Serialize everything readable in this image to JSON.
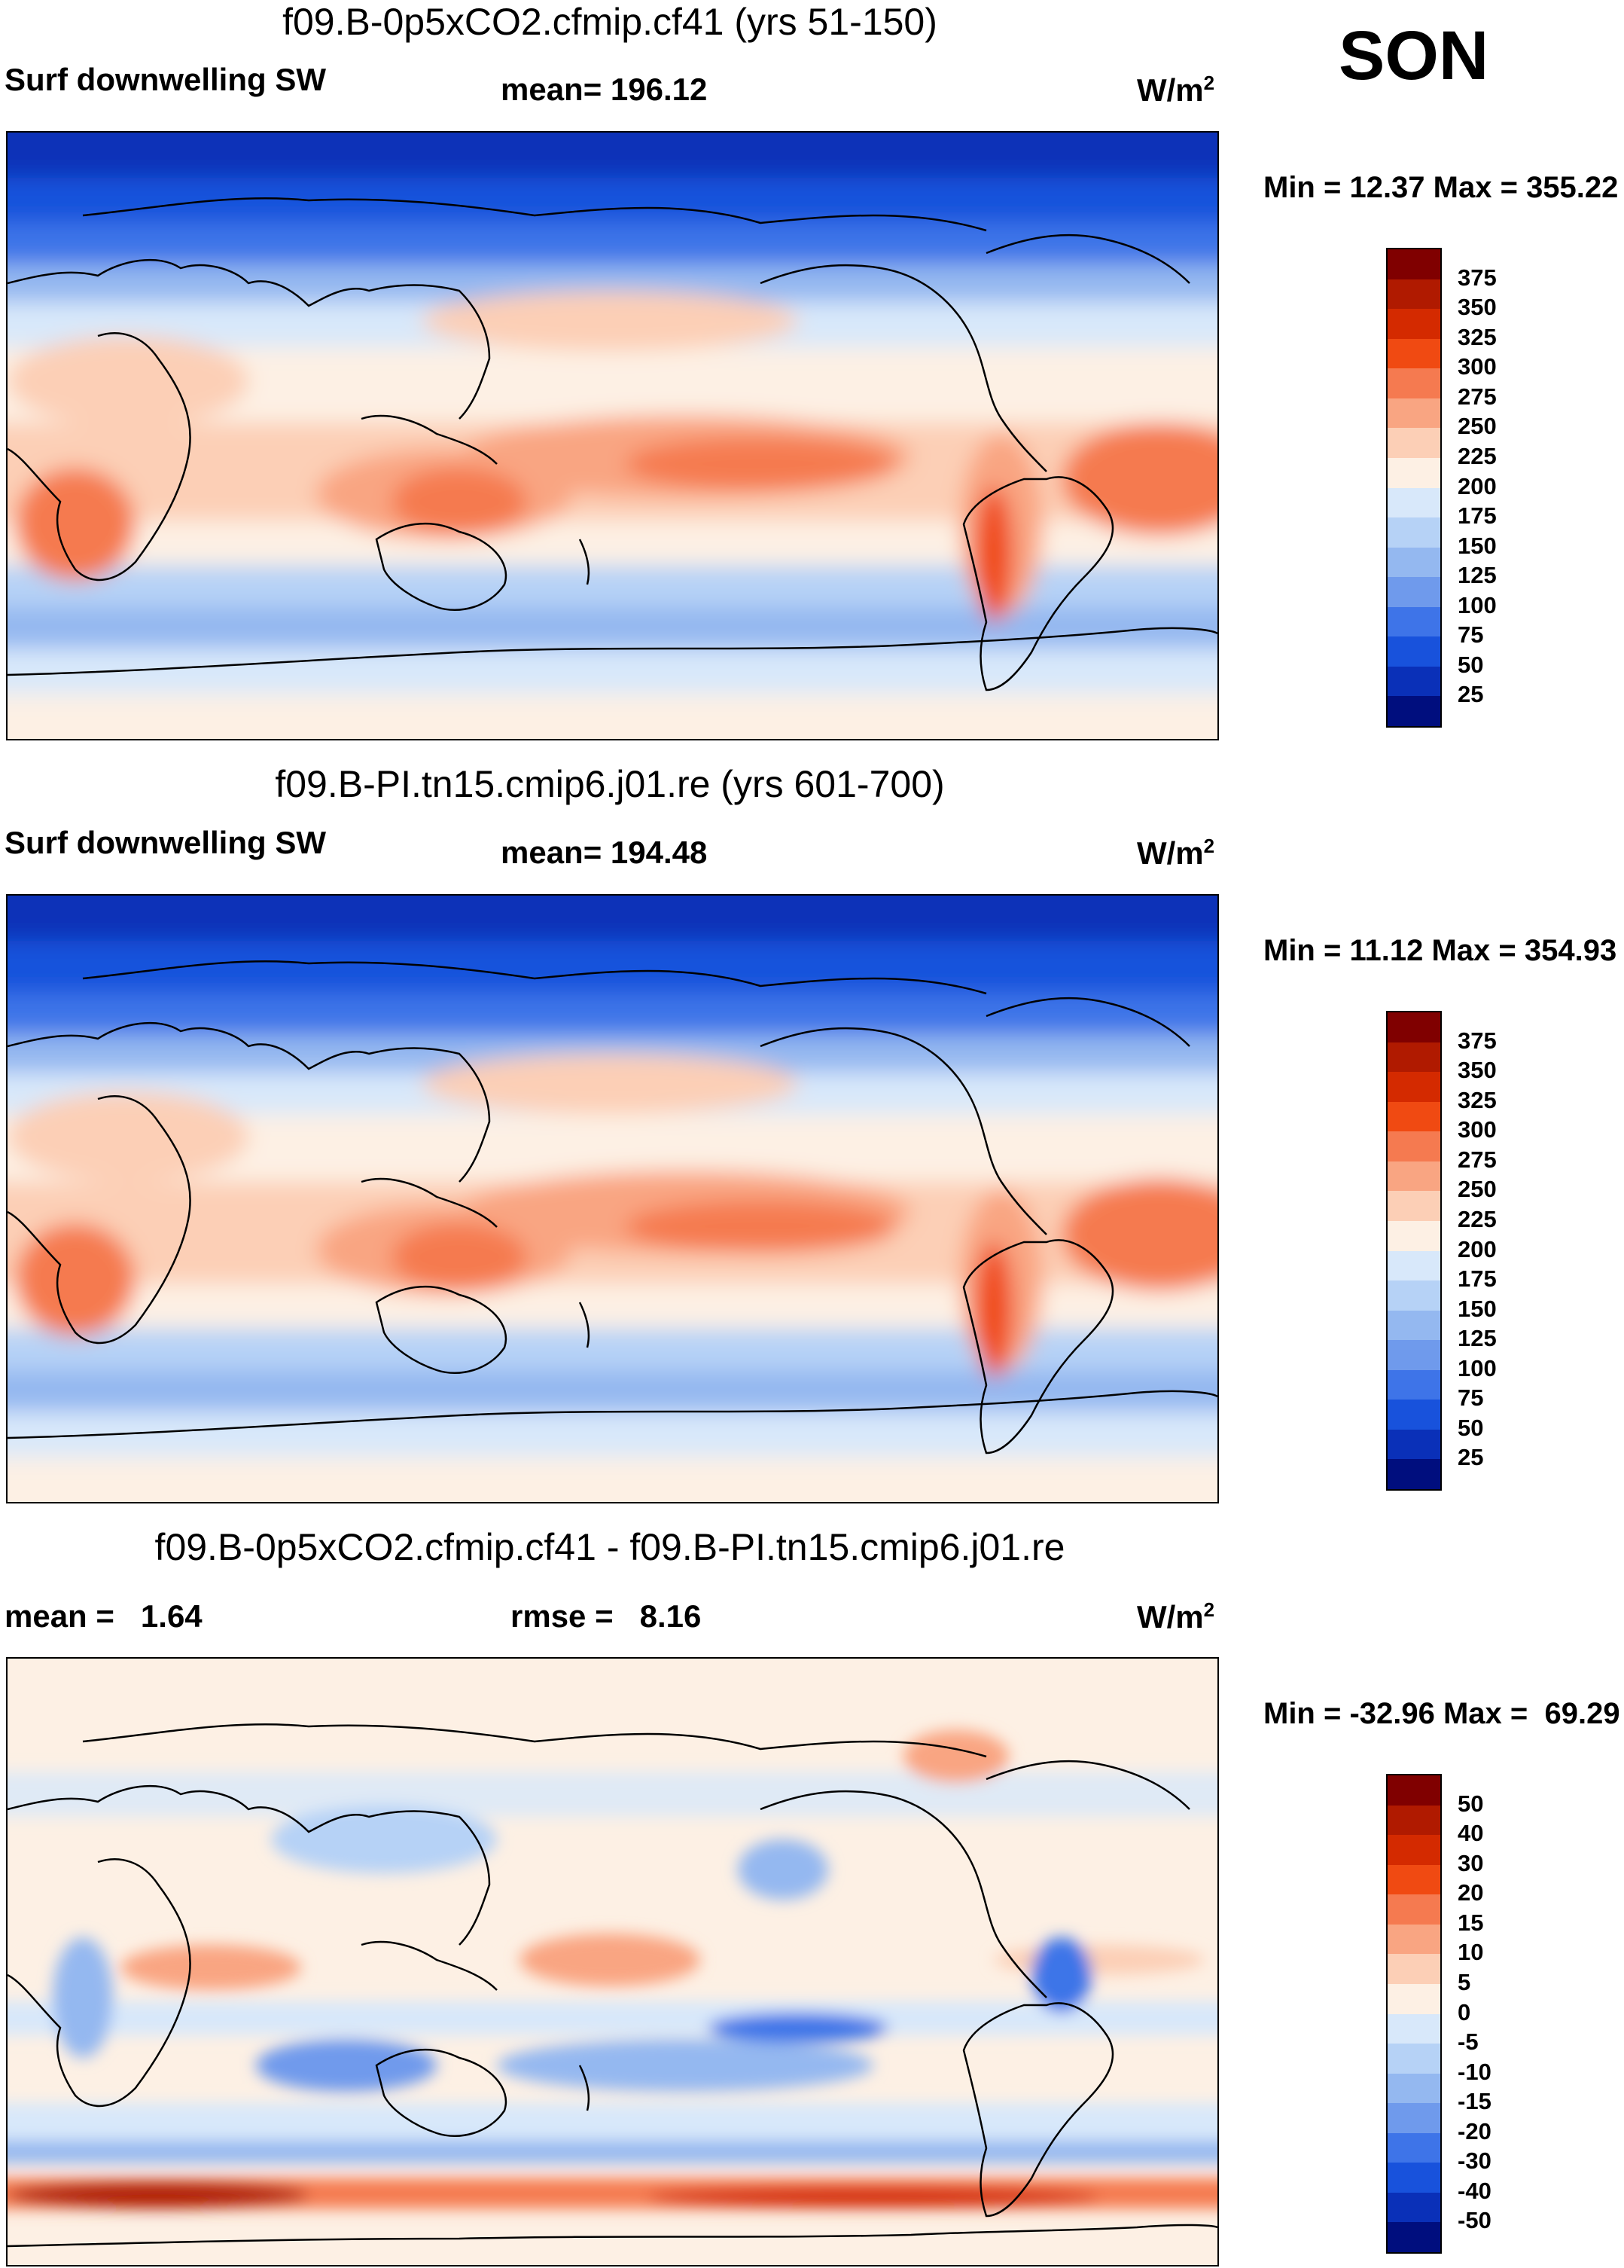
{
  "season": "SON",
  "panels": [
    {
      "title": "f09.B-0p5xCO2.cfmip.cf41 (yrs 51-150)",
      "left_label": "Surf downwelling SW",
      "center_label": "mean= 196.12",
      "right_label": "W/m",
      "right_sup": "2",
      "minmax": "Min =  12.37 Max = 355.22",
      "colorbar": {
        "colors": [
          "#800000",
          "#b01a00",
          "#d42a00",
          "#f04a12",
          "#f57a50",
          "#f9a582",
          "#fccfb6",
          "#fdf0e4",
          "#d8e8fa",
          "#b6d2f6",
          "#94b8f0",
          "#6f9aec",
          "#3e74e8",
          "#1852dc",
          "#0a30b8",
          "#000e7e"
        ],
        "ticks": [
          "375",
          "350",
          "325",
          "300",
          "275",
          "250",
          "225",
          "200",
          "175",
          "150",
          "125",
          "100",
          "75",
          "50",
          "25"
        ]
      }
    },
    {
      "title": "f09.B-PI.tn15.cmip6.j01.re (yrs 601-700)",
      "left_label": "Surf downwelling SW",
      "center_label": "mean= 194.48",
      "right_label": "W/m",
      "right_sup": "2",
      "minmax": "Min =  11.12 Max = 354.93",
      "colorbar": {
        "colors": [
          "#800000",
          "#b01a00",
          "#d42a00",
          "#f04a12",
          "#f57a50",
          "#f9a582",
          "#fccfb6",
          "#fdf0e4",
          "#d8e8fa",
          "#b6d2f6",
          "#94b8f0",
          "#6f9aec",
          "#3e74e8",
          "#1852dc",
          "#0a30b8",
          "#000e7e"
        ],
        "ticks": [
          "375",
          "350",
          "325",
          "300",
          "275",
          "250",
          "225",
          "200",
          "175",
          "150",
          "125",
          "100",
          "75",
          "50",
          "25"
        ]
      }
    },
    {
      "title": "f09.B-0p5xCO2.cfmip.cf41 - f09.B-PI.tn15.cmip6.j01.re",
      "left_label": "mean =   1.64",
      "center_label": "rmse =   8.16",
      "right_label": "W/m",
      "right_sup": "2",
      "minmax": "Min = -32.96 Max =  69.29",
      "colorbar": {
        "colors": [
          "#800000",
          "#b01a00",
          "#d42a00",
          "#f04a12",
          "#f57a50",
          "#f9a582",
          "#fccfb6",
          "#fdf0e4",
          "#d8e8fa",
          "#b6d2f6",
          "#94b8f0",
          "#6f9aec",
          "#3e74e8",
          "#1852dc",
          "#0a30b8",
          "#000e7e"
        ],
        "ticks": [
          "50",
          "40",
          "30",
          "20",
          "15",
          "10",
          "5",
          "0",
          "-5",
          "-10",
          "-15",
          "-20",
          "-30",
          "-40",
          "-50"
        ]
      }
    }
  ]
}
